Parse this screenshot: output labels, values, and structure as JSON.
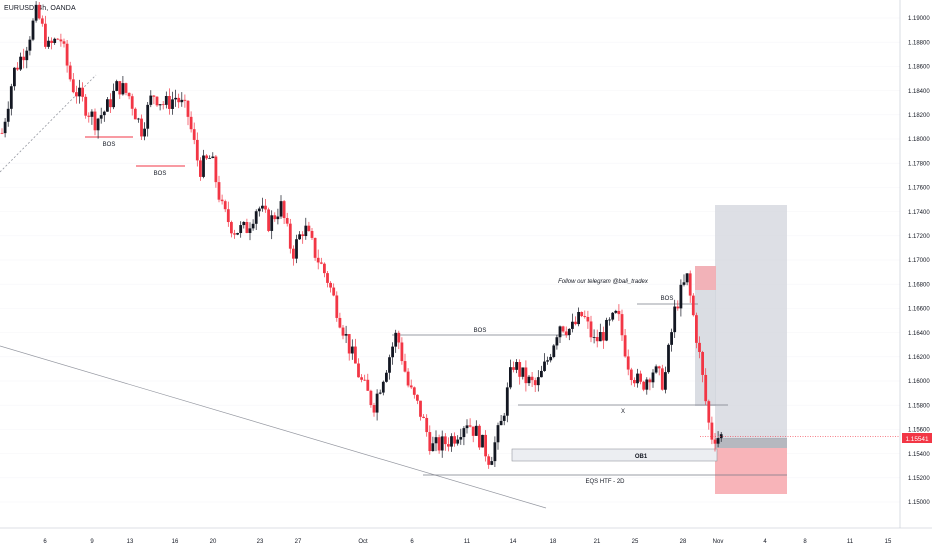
{
  "header": {
    "symbol": "EURUSD, 4h, OANDA"
  },
  "price_tag": {
    "label": "1.15541",
    "color": "#f23645"
  },
  "annotations": {
    "telegram": "Follow our telegram @bali_tradex",
    "bos_1": "BOS",
    "bos_2": "BOS",
    "bos_3": "BOS",
    "bos_4": "BOS",
    "x_label": "X",
    "ob1": "OB1",
    "eqs": "EQS HTF - 2D"
  },
  "colors": {
    "up_candle": "#131722",
    "down_candle": "#f23645",
    "axis_text": "#131722",
    "grid": "#e0e3eb",
    "target_zone": "#d1d4dc",
    "stop_zone": "#f7a7ad"
  },
  "chart_data": {
    "type": "candlestick",
    "title": "EURUSD, 4h, OANDA",
    "yaxis": {
      "ticks": [
        "1.19000",
        "1.18800",
        "1.18600",
        "1.18400",
        "1.18200",
        "1.18000",
        "1.17800",
        "1.17600",
        "1.17400",
        "1.17200",
        "1.17000",
        "1.16800",
        "1.16600",
        "1.16400",
        "1.16200",
        "1.16000",
        "1.15800",
        "1.15600",
        "1.15400",
        "1.15200",
        "1.15000"
      ],
      "range": [
        1.149,
        1.1915
      ]
    },
    "xaxis": {
      "ticks": [
        "6",
        "9",
        "13",
        "16",
        "20",
        "23",
        "27",
        "Oct",
        "6",
        "11",
        "14",
        "18",
        "21",
        "25",
        "28",
        "Nov",
        "4",
        "8",
        "11",
        "15"
      ]
    },
    "last_price": 1.15541,
    "close_path": [
      {
        "t": "Sep 2",
        "v": 1.1805
      },
      {
        "t": "Sep 3",
        "v": 1.1855
      },
      {
        "t": "Sep 4",
        "v": 1.1875
      },
      {
        "t": "Sep 5",
        "v": 1.1905
      },
      {
        "t": "Sep 6",
        "v": 1.1875
      },
      {
        "t": "Sep 7",
        "v": 1.1885
      },
      {
        "t": "Sep 8",
        "v": 1.1845
      },
      {
        "t": "Sep 9",
        "v": 1.183
      },
      {
        "t": "Sep 10",
        "v": 1.1815
      },
      {
        "t": "Sep 11",
        "v": 1.1825
      },
      {
        "t": "Sep 12",
        "v": 1.1845
      },
      {
        "t": "Sep 13",
        "v": 1.1835
      },
      {
        "t": "Sep 14",
        "v": 1.1808
      },
      {
        "t": "Sep 15",
        "v": 1.1838
      },
      {
        "t": "Sep 16",
        "v": 1.1828
      },
      {
        "t": "Sep 17",
        "v": 1.1835
      },
      {
        "t": "Sep 18",
        "v": 1.182
      },
      {
        "t": "Sep 19",
        "v": 1.1775
      },
      {
        "t": "Sep 20",
        "v": 1.1785
      },
      {
        "t": "Sep 21",
        "v": 1.174
      },
      {
        "t": "Sep 22",
        "v": 1.1725
      },
      {
        "t": "Sep 23",
        "v": 1.1725
      },
      {
        "t": "Sep 24",
        "v": 1.1745
      },
      {
        "t": "Sep 25",
        "v": 1.173
      },
      {
        "t": "Sep 26",
        "v": 1.1745
      },
      {
        "t": "Sep 27",
        "v": 1.1705
      },
      {
        "t": "Sep 28",
        "v": 1.1728
      },
      {
        "t": "Sep 29",
        "v": 1.1705
      },
      {
        "t": "Sep 30",
        "v": 1.1685
      },
      {
        "t": "Oct 1",
        "v": 1.1655
      },
      {
        "t": "Oct 2",
        "v": 1.1625
      },
      {
        "t": "Oct 3",
        "v": 1.1598
      },
      {
        "t": "Oct 4",
        "v": 1.158
      },
      {
        "t": "Oct 5",
        "v": 1.161
      },
      {
        "t": "Oct 6",
        "v": 1.164
      },
      {
        "t": "Oct 7",
        "v": 1.1595
      },
      {
        "t": "Oct 8",
        "v": 1.1575
      },
      {
        "t": "Oct 9",
        "v": 1.1545
      },
      {
        "t": "Oct 10",
        "v": 1.1548
      },
      {
        "t": "Oct 11",
        "v": 1.1555
      },
      {
        "t": "Oct 12",
        "v": 1.1568
      },
      {
        "t": "Oct 13",
        "v": 1.1555
      },
      {
        "t": "Oct 14",
        "v": 1.1535
      },
      {
        "t": "Oct 15",
        "v": 1.1565
      },
      {
        "t": "Oct 16",
        "v": 1.1615
      },
      {
        "t": "Oct 17",
        "v": 1.1602
      },
      {
        "t": "Oct 18",
        "v": 1.1595
      },
      {
        "t": "Oct 19",
        "v": 1.1618
      },
      {
        "t": "Oct 20",
        "v": 1.1648
      },
      {
        "t": "Oct 21",
        "v": 1.1642
      },
      {
        "t": "Oct 22",
        "v": 1.1655
      },
      {
        "t": "Oct 23",
        "v": 1.1632
      },
      {
        "t": "Oct 24",
        "v": 1.1642
      },
      {
        "t": "Oct 25",
        "v": 1.1655
      },
      {
        "t": "Oct 26",
        "v": 1.1612
      },
      {
        "t": "Oct 27",
        "v": 1.1595
      },
      {
        "t": "Oct 28",
        "v": 1.161
      },
      {
        "t": "Oct 29",
        "v": 1.1598
      },
      {
        "t": "Oct 30",
        "v": 1.1662
      },
      {
        "t": "Oct 31",
        "v": 1.1685
      },
      {
        "t": "Nov 1",
        "v": 1.1625
      },
      {
        "t": "Nov 2",
        "v": 1.1555
      },
      {
        "t": "Nov 3",
        "v": 1.1554
      }
    ]
  }
}
